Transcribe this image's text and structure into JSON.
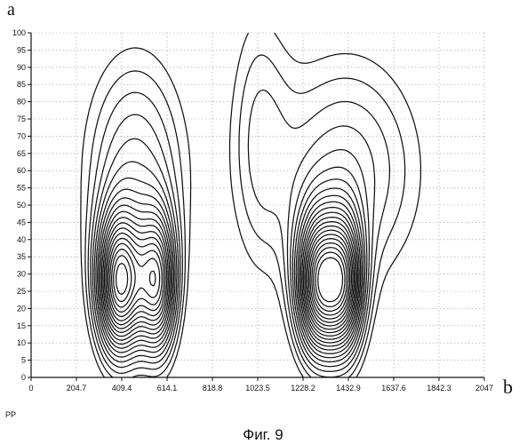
{
  "figure": {
    "corner_label": "a",
    "x_axis_letter": "b",
    "footnote": "PP",
    "caption": "Фиг. 9"
  },
  "chart_data": {
    "type": "contour",
    "title": "",
    "xlabel": "",
    "ylabel": "",
    "xlim": [
      0,
      2047
    ],
    "ylim": [
      0,
      100
    ],
    "grid": true,
    "legend": "none",
    "x_ticks": [
      "0",
      "204.7",
      "409.4",
      "614.1",
      "818.8",
      "1023.5",
      "1228.2",
      "1432.9",
      "1637.6",
      "1842.3",
      "2047"
    ],
    "y_ticks": [
      "0",
      "5",
      "10",
      "15",
      "20",
      "25",
      "30",
      "35",
      "40",
      "45",
      "50",
      "55",
      "60",
      "65",
      "70",
      "75",
      "80",
      "85",
      "90",
      "95",
      "100"
    ],
    "line_color": "#111111",
    "peaks": [
      {
        "x": 400,
        "y": 27,
        "height": 1.0
      },
      {
        "x": 570,
        "y": 27,
        "height": 0.8
      },
      {
        "x": 1300,
        "y": 27,
        "height": 1.0
      },
      {
        "x": 1420,
        "y": 27,
        "height": 0.75
      }
    ],
    "contour_levels": 22,
    "outer_contour_x_ranges": [
      [
        280,
        780
      ],
      [
        1080,
        1840
      ]
    ]
  }
}
